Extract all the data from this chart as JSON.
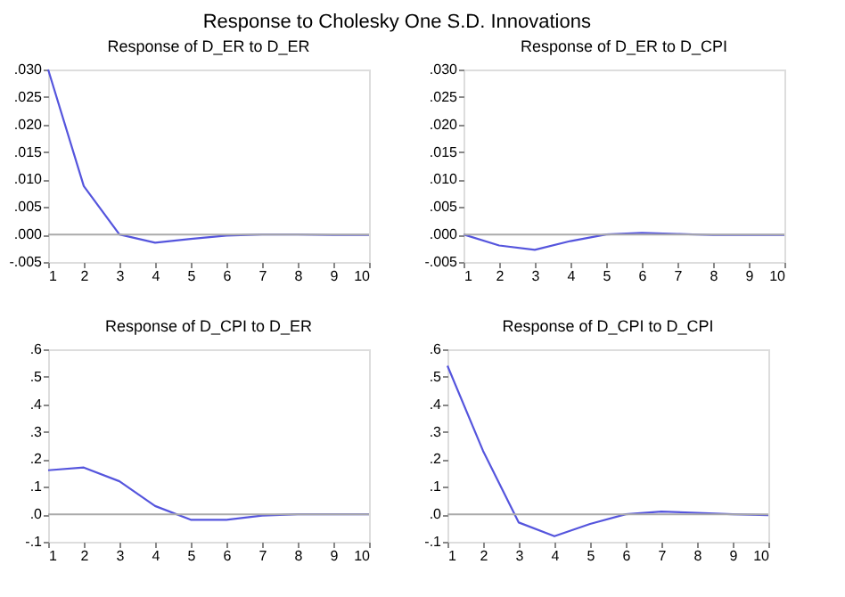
{
  "chart_data": [
    {
      "type": "line",
      "title": "Response of D_ER to D_ER",
      "annotations": [
        "Response to Cholesky One S.D. Innovations"
      ],
      "x": [
        1,
        2,
        3,
        4,
        5,
        6,
        7,
        8,
        9,
        10
      ],
      "series": [
        {
          "color": "#5555dd",
          "values": [
            0.03,
            0.0088,
            0.0,
            -0.0015,
            -0.0008,
            -0.0002,
            0.0,
            0.0,
            -0.0001,
            -0.0001
          ]
        }
      ],
      "xlim": [
        1,
        10
      ],
      "xticks": [
        1,
        2,
        3,
        4,
        5,
        6,
        7,
        8,
        9,
        10
      ],
      "ylim": [
        -0.005,
        0.03
      ],
      "yticks": [
        {
          "value": -0.005,
          "label": "-.005"
        },
        {
          "value": 0.0,
          "label": ".000"
        },
        {
          "value": 0.005,
          "label": ".005"
        },
        {
          "value": 0.01,
          "label": ".010"
        },
        {
          "value": 0.015,
          "label": ".015"
        },
        {
          "value": 0.02,
          "label": ".020"
        },
        {
          "value": 0.025,
          "label": ".025"
        },
        {
          "value": 0.03,
          "label": ".030"
        }
      ],
      "ref_lines": [
        {
          "axis": "y",
          "value": 0,
          "color": "#aaaaaa"
        }
      ],
      "grid": false,
      "line_style": "solid",
      "marker": "none"
    },
    {
      "type": "line",
      "title": "Response of D_ER to D_CPI",
      "x": [
        1,
        2,
        3,
        4,
        5,
        6,
        7,
        8,
        9,
        10
      ],
      "series": [
        {
          "color": "#5555dd",
          "values": [
            0.0,
            -0.002,
            -0.0028,
            -0.0012,
            0.0,
            0.0003,
            0.0001,
            -0.0001,
            -0.0001,
            -0.0001
          ]
        }
      ],
      "xlim": [
        1,
        10
      ],
      "xticks": [
        1,
        2,
        3,
        4,
        5,
        6,
        7,
        8,
        9,
        10
      ],
      "ylim": [
        -0.005,
        0.03
      ],
      "yticks": [
        {
          "value": -0.005,
          "label": "-.005"
        },
        {
          "value": 0.0,
          "label": ".000"
        },
        {
          "value": 0.005,
          "label": ".005"
        },
        {
          "value": 0.01,
          "label": ".010"
        },
        {
          "value": 0.015,
          "label": ".015"
        },
        {
          "value": 0.02,
          "label": ".020"
        },
        {
          "value": 0.025,
          "label": ".025"
        },
        {
          "value": 0.03,
          "label": ".030"
        }
      ],
      "ref_lines": [
        {
          "axis": "y",
          "value": 0,
          "color": "#aaaaaa"
        }
      ],
      "grid": false,
      "line_style": "solid",
      "marker": "none"
    },
    {
      "type": "line",
      "title": "Response of D_CPI to D_ER",
      "x": [
        1,
        2,
        3,
        4,
        5,
        6,
        7,
        8,
        9,
        10
      ],
      "series": [
        {
          "color": "#5555dd",
          "values": [
            0.16,
            0.17,
            0.12,
            0.03,
            -0.02,
            -0.02,
            -0.005,
            0.0,
            0.0,
            0.0
          ]
        }
      ],
      "xlim": [
        1,
        10
      ],
      "xticks": [
        1,
        2,
        3,
        4,
        5,
        6,
        7,
        8,
        9,
        10
      ],
      "ylim": [
        -0.1,
        0.6
      ],
      "yticks": [
        {
          "value": -0.1,
          "label": "-.1"
        },
        {
          "value": 0.0,
          "label": ".0"
        },
        {
          "value": 0.1,
          "label": ".1"
        },
        {
          "value": 0.2,
          "label": ".2"
        },
        {
          "value": 0.3,
          "label": ".3"
        },
        {
          "value": 0.4,
          "label": ".4"
        },
        {
          "value": 0.5,
          "label": ".5"
        },
        {
          "value": 0.6,
          "label": ".6"
        }
      ],
      "ref_lines": [
        {
          "axis": "y",
          "value": 0,
          "color": "#aaaaaa"
        }
      ],
      "grid": false,
      "line_style": "solid",
      "marker": "none"
    },
    {
      "type": "line",
      "title": "Response of D_CPI to D_CPI",
      "x": [
        1,
        2,
        3,
        4,
        5,
        6,
        7,
        8,
        9,
        10
      ],
      "series": [
        {
          "color": "#5555dd",
          "values": [
            0.54,
            0.23,
            -0.03,
            -0.08,
            -0.035,
            0.0,
            0.01,
            0.005,
            0.0,
            -0.003
          ]
        }
      ],
      "xlim": [
        1,
        10
      ],
      "xticks": [
        1,
        2,
        3,
        4,
        5,
        6,
        7,
        8,
        9,
        10
      ],
      "ylim": [
        -0.1,
        0.6
      ],
      "yticks": [
        {
          "value": -0.1,
          "label": "-.1"
        },
        {
          "value": 0.0,
          "label": ".0"
        },
        {
          "value": 0.1,
          "label": ".1"
        },
        {
          "value": 0.2,
          "label": ".2"
        },
        {
          "value": 0.3,
          "label": ".3"
        },
        {
          "value": 0.4,
          "label": ".4"
        },
        {
          "value": 0.5,
          "label": ".5"
        },
        {
          "value": 0.6,
          "label": ".6"
        }
      ],
      "ref_lines": [
        {
          "axis": "y",
          "value": 0,
          "color": "#aaaaaa"
        }
      ],
      "grid": false,
      "line_style": "solid",
      "marker": "none"
    }
  ]
}
